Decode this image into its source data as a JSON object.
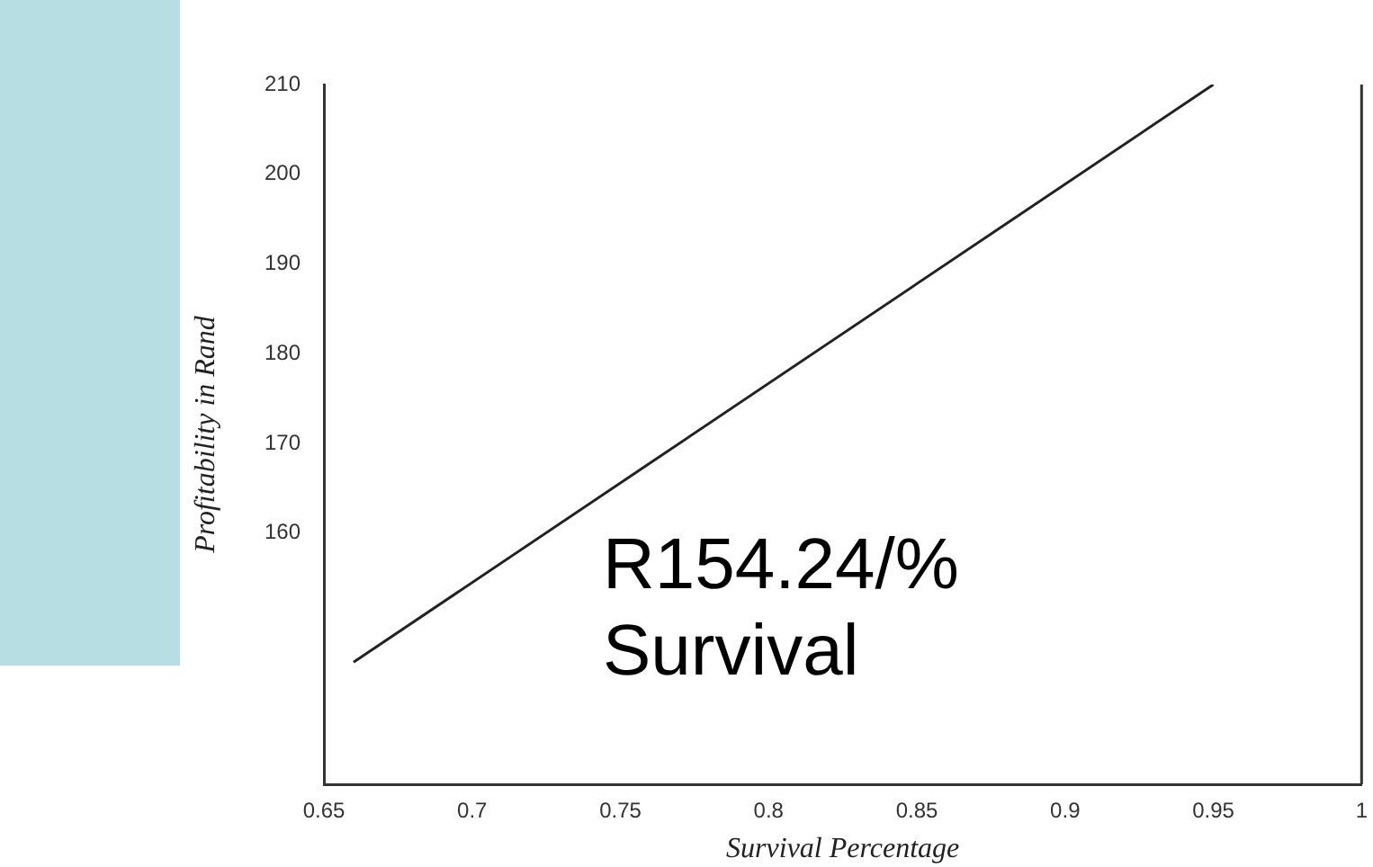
{
  "chart_data": {
    "type": "line",
    "xlabel": "Survival Percentage",
    "ylabel": "Profitability in Rand",
    "x": [
      0.66,
      0.95
    ],
    "series": [
      {
        "color": "#222222",
        "values": [
          145.6,
          210
        ]
      }
    ],
    "xlim": [
      0.65,
      1
    ],
    "xticks": [
      0.65,
      0.7,
      0.75,
      0.8,
      0.85,
      0.9,
      0.95,
      1
    ],
    "ylim": [
      132,
      210
    ],
    "yticks": [
      160,
      170,
      180,
      190,
      200,
      210
    ],
    "grid": false,
    "legend": false,
    "marker": "none",
    "line_style": "solid",
    "annotations": [
      "R154.24/% Survival"
    ]
  }
}
